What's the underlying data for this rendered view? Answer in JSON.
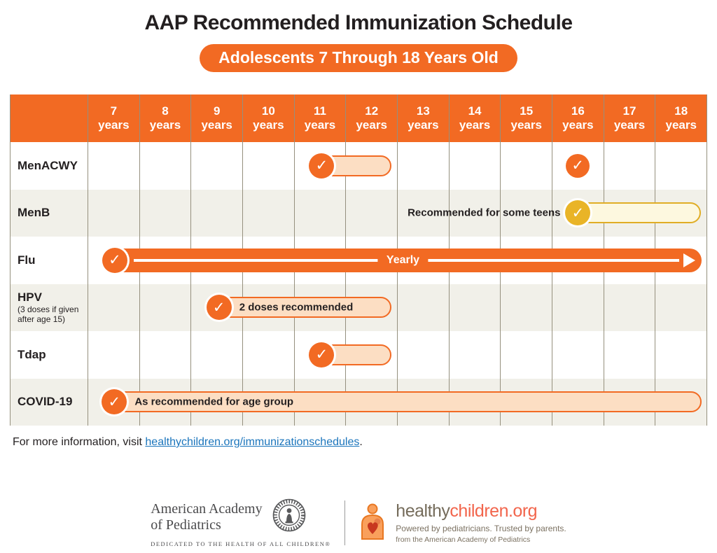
{
  "page": {
    "title": "AAP Recommended Immunization Schedule",
    "badge": "Adolescents 7 Through 18 Years Old"
  },
  "colors": {
    "orange": "#F26A23",
    "orange_light_fill": "#FCDEC3",
    "gold": "#E9B427",
    "gold_border": "#E0AD25",
    "gold_light_fill": "#FDF8DF",
    "row_beige": "#F1F0E9",
    "grid_line": "#95907E",
    "text_dark": "#231F20",
    "link_blue": "#1B75BC"
  },
  "chart_data": {
    "type": "table",
    "title": "AAP Recommended Immunization Schedule",
    "subtitle": "Adolescents 7 Through 18 Years Old",
    "age_unit": "years",
    "age_columns": [
      "7",
      "8",
      "9",
      "10",
      "11",
      "12",
      "13",
      "14",
      "15",
      "16",
      "17",
      "18"
    ],
    "age_range": [
      7,
      19
    ],
    "check_glyph": "✓",
    "rows": [
      {
        "vaccine": "MenACWY",
        "bars": [
          {
            "age_start": 11,
            "age_end": 13,
            "style": "orange-light",
            "label": "",
            "left_pct": 35.8,
            "width_pct": 13.2
          }
        ],
        "marks": [
          {
            "age": 16,
            "center_pct": 79.1
          }
        ]
      },
      {
        "vaccine": "MenB",
        "inline_note": "Recommended for some teens",
        "inline_note_right_pct": 23.7,
        "bars": [
          {
            "age_start": 16.2,
            "age_end": 19,
            "style": "gold",
            "label": "",
            "left_pct": 77.2,
            "width_pct": 21.8
          }
        ]
      },
      {
        "vaccine": "Flu",
        "bars": [
          {
            "age_start": 7,
            "age_end": 19,
            "style": "orange-solid",
            "label": "Yearly",
            "arrow": true,
            "left_pct": 2.6,
            "width_pct": 96.5
          }
        ]
      },
      {
        "vaccine": "HPV",
        "note": "(3 doses if given after age 15)",
        "bars": [
          {
            "age_start": 9.3,
            "age_end": 13,
            "style": "orange-light",
            "label": "2 doses recommended",
            "left_pct": 19.2,
            "width_pct": 29.8
          }
        ]
      },
      {
        "vaccine": "Tdap",
        "bars": [
          {
            "age_start": 11,
            "age_end": 13,
            "style": "orange-light",
            "label": "",
            "left_pct": 35.8,
            "width_pct": 13.2
          }
        ]
      },
      {
        "vaccine": "COVID-19",
        "bars": [
          {
            "age_start": 7,
            "age_end": 19,
            "style": "orange-light",
            "label": "As recommended for age group",
            "left_pct": 2.3,
            "width_pct": 96.8
          }
        ]
      }
    ]
  },
  "footer": {
    "info_prefix": "For more information, visit ",
    "link_text": "healthychildren.org/immunizationschedules",
    "info_suffix": "."
  },
  "logos": {
    "aap_name_line1": "American Academy",
    "aap_name_line2": "of Pediatrics",
    "aap_tagline": "DEDICATED TO THE HEALTH OF ALL CHILDREN®",
    "hc_name_part1": "healthy",
    "hc_name_part2": "children.org",
    "hc_tagline": "Powered by pediatricians. Trusted by parents.",
    "hc_from": "from the American Academy of Pediatrics"
  }
}
